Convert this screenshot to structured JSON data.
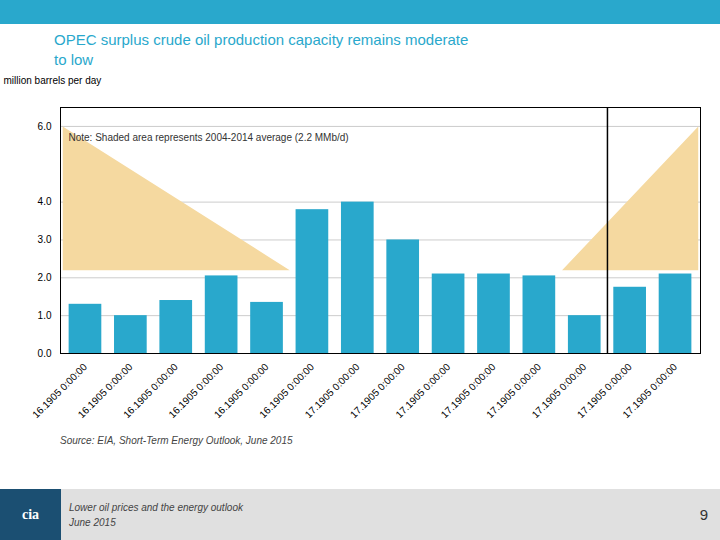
{
  "chart_data": {
    "type": "bar",
    "title": "OPEC surplus crude oil production capacity remains moderate\nto low",
    "title_color": "#29A8CC",
    "ylabel": "million barrels per day",
    "categories": [
      "16.1905 0:00:00",
      "16.1905 0:00:00",
      "16.1905 0:00:00",
      "16.1905 0:00:00",
      "16.1905 0:00:00",
      "16.1905 0:00:00",
      "17.1905 0:00:00",
      "17.1905 0:00:00",
      "17.1905 0:00:00",
      "17.1905 0:00:00",
      "17.1905 0:00:00",
      "17.1905 0:00:00",
      "17.1905 0:00:00",
      "17.1905 0:00:00"
    ],
    "values": [
      1.3,
      1.0,
      1.4,
      2.05,
      1.35,
      3.8,
      4.0,
      3.0,
      2.1,
      2.1,
      2.05,
      1.0,
      1.75,
      2.1
    ],
    "color": "#29A8CC",
    "ylim": [
      0,
      6.5
    ],
    "yticks": [
      0,
      1,
      2,
      3,
      4,
      6
    ],
    "grid": true,
    "grid_color": "#CCCCCC",
    "shade": {
      "x": [
        -0.5,
        4.5,
        10.5,
        13.5,
        13.5,
        10.5,
        4.5,
        -0.5
      ],
      "y": [
        6.0,
        2.2,
        2.2,
        6.0,
        2.2,
        2.2,
        2.2,
        2.2
      ],
      "color": "#F5D9A0"
    },
    "vline_x": 11.5,
    "note": "Note: Shaded area represents 2004-2014 average (2.2 MMb/d)",
    "source": "Source: EIA, Short-Term Energy Outlook, June 2015",
    "footer_text": "Lower oil prices and the energy outlook\nJune 2015",
    "footer_right": "9",
    "logo_text": "cia",
    "top_bar_color": "#29A8CC",
    "footer_color": "#E0E0E0",
    "logo_color": "#1B4F72"
  }
}
